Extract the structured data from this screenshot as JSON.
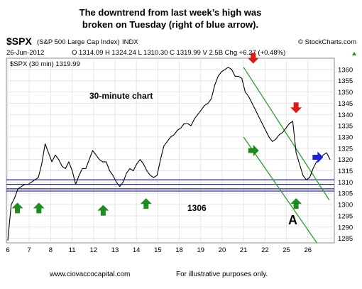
{
  "headline": {
    "line1": "The downtrend from last week’s high was",
    "line2": "broken on Tuesday (right of blue arrow)."
  },
  "header": {
    "symbol": "$SPX",
    "name": "(S&P 500 Large Cap Index)",
    "exchange": "INDX",
    "watermark": "© StockCharts.com",
    "date": "26-Jun-2012",
    "ohlc_line": "O 1314.09  H 1324.24  L 1310.30  C 1319.99  V 2.5B  Chg +6.27 (+0.48%)",
    "legend": "$SPX (30 min) 1319.99"
  },
  "annotations": {
    "chart_label": "30-minute chart",
    "support_level": "1306",
    "point_label": "A"
  },
  "footer": {
    "website": "www.ciovaccocapital.com",
    "disclaimer": "For illustrative purposes only."
  },
  "colors": {
    "price": "#000000",
    "channel": "#2e9e2e",
    "support": "#1a1a9c",
    "up_arrow": "#1e8c1e",
    "down_arrow": "#e01818",
    "blue_arrow": "#1a22d8"
  },
  "chart_data": {
    "type": "line",
    "title": "",
    "xlabel": "",
    "ylabel": "",
    "x_ticks": [
      "6",
      "7",
      "8",
      "11",
      "12",
      "13",
      "14",
      "15",
      "18",
      "19",
      "20",
      "21",
      "22",
      "25",
      "26"
    ],
    "y_ticks": [
      1285,
      1290,
      1295,
      1300,
      1305,
      1310,
      1315,
      1320,
      1325,
      1330,
      1335,
      1340,
      1345,
      1350,
      1355,
      1360
    ],
    "ylim": [
      1283,
      1365
    ],
    "grid": true,
    "series": [
      {
        "values": [
          1284,
          1300,
          1303,
          1307,
          1308,
          1309,
          1309,
          1310,
          1311,
          1312,
          1318,
          1327,
          1323,
          1319,
          1322,
          1320,
          1317,
          1316,
          1319,
          1315,
          1309,
          1313,
          1316,
          1316,
          1320,
          1324,
          1322,
          1320,
          1319,
          1319,
          1315,
          1313,
          1310,
          1308,
          1310,
          1314,
          1316,
          1315,
          1318,
          1320,
          1318,
          1315,
          1313,
          1312,
          1313,
          1320,
          1326,
          1328,
          1330,
          1331,
          1333,
          1334,
          1336,
          1336,
          1335,
          1338,
          1340,
          1342,
          1344,
          1345,
          1347,
          1353,
          1357,
          1359,
          1360,
          1361,
          1360,
          1357,
          1357,
          1356,
          1350,
          1348,
          1345,
          1342,
          1339,
          1336,
          1333,
          1330,
          1328,
          1329,
          1331,
          1332,
          1334,
          1336,
          1337,
          1323,
          1318,
          1313,
          1311,
          1312,
          1316,
          1319,
          1320,
          1322,
          1323,
          1320
        ]
      }
    ],
    "support_lines": [
      1311,
      1309,
      1307,
      1306
    ],
    "channel_lines": [
      {
        "start": {
          "day": "21",
          "value": 1361
        },
        "end": {
          "day": "26",
          "value": 1302
        }
      },
      {
        "start": {
          "day": "21",
          "value": 1330
        },
        "end": {
          "day": "26",
          "value": 1275
        }
      }
    ],
    "arrows": [
      {
        "type": "up",
        "day": "6",
        "value": 1304
      },
      {
        "type": "up",
        "day": "7",
        "value": 1304
      },
      {
        "type": "up",
        "day": "12",
        "value": 1303
      },
      {
        "type": "up",
        "day": "14",
        "value": 1306
      },
      {
        "type": "right",
        "day": "21",
        "value": 1324
      },
      {
        "type": "up",
        "day": "25",
        "value": 1306
      },
      {
        "type": "down",
        "day": "21",
        "value": 1362
      },
      {
        "type": "down",
        "day": "25",
        "value": 1340
      },
      {
        "type": "right",
        "day": "26",
        "value": 1321
      }
    ]
  }
}
